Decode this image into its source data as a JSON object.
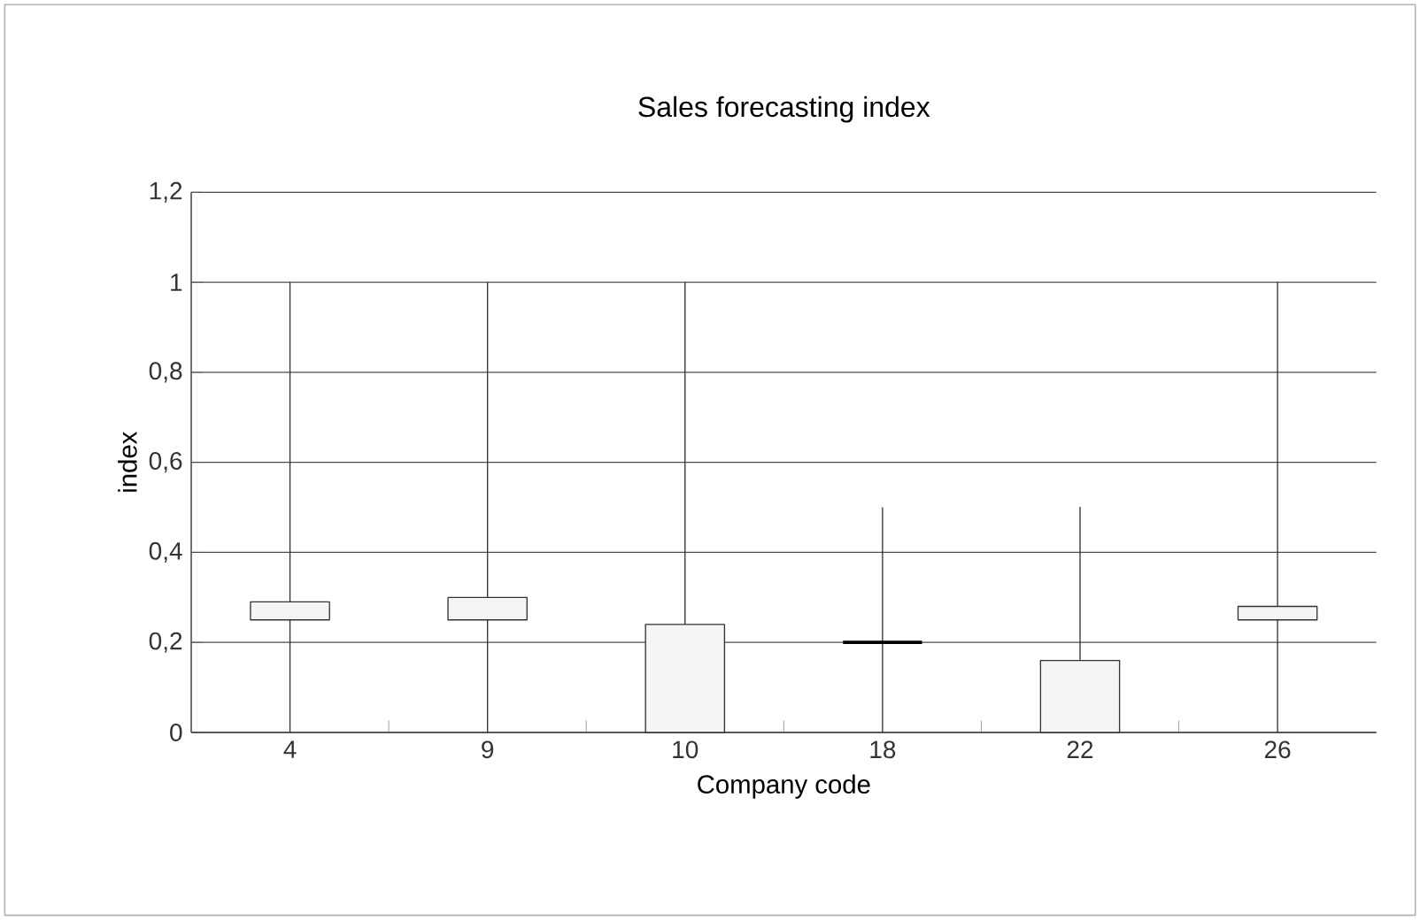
{
  "chart_data": {
    "type": "candlestick",
    "title": "Sales forecasting index",
    "xlabel": "Company code",
    "ylabel": "index",
    "categories": [
      "4",
      "9",
      "10",
      "18",
      "22",
      "26"
    ],
    "ohlc": [
      [
        0.25,
        1,
        0,
        0.29
      ],
      [
        0.25,
        1,
        0,
        0.3
      ],
      [
        0,
        1,
        0,
        0.24
      ],
      [
        0.2,
        0.5,
        0,
        0.2
      ],
      [
        0,
        0.5,
        0,
        0.16
      ],
      [
        0.25,
        1,
        0,
        0.28
      ]
    ],
    "ylim": [
      0,
      1.2
    ],
    "yticks": [
      0,
      {
        "value": 0.2,
        "label": "0,2"
      },
      {
        "value": 0.4,
        "label": "0,4"
      },
      {
        "value": 0.6,
        "label": "0,6"
      },
      {
        "value": 0.8,
        "label": "0,8"
      },
      1,
      {
        "value": 1.2,
        "label": "1,2"
      }
    ],
    "grid": "y"
  }
}
